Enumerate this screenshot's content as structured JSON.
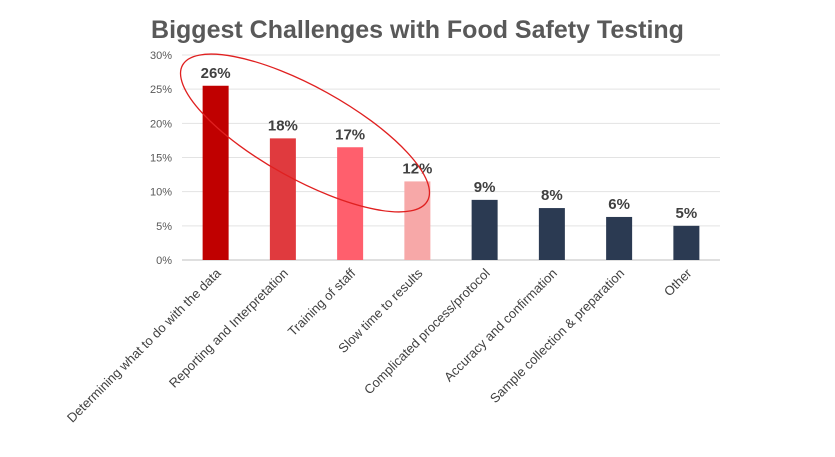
{
  "chart_data": {
    "type": "bar",
    "title": "Biggest Challenges with Food Safety Testing",
    "xlabel": "",
    "ylabel": "",
    "ylim": [
      0,
      30
    ],
    "y_ticks": [
      "0%",
      "5%",
      "10%",
      "15%",
      "20%",
      "25%",
      "30%"
    ],
    "y_tick_values": [
      0,
      5,
      10,
      15,
      20,
      25,
      30
    ],
    "grid": true,
    "legend": "none",
    "categories": [
      "Determining what to do with the data",
      "Reporting and Interpretation",
      "Training of staff",
      "Slow time to results",
      "Complicated process/protocol",
      "Accuracy and confirmation",
      "Sample collection & preparation",
      "Other"
    ],
    "values": [
      25.5,
      17.8,
      16.5,
      11.5,
      8.8,
      7.6,
      6.3,
      5.0
    ],
    "data_labels": [
      "26%",
      "18%",
      "17%",
      "12%",
      "9%",
      "8%",
      "6%",
      "5%"
    ],
    "colors": [
      "#c00000",
      "#e03a3e",
      "#ff5f6d",
      "#f7a8a8",
      "#2b3a52",
      "#2b3a52",
      "#2b3a52",
      "#2b3a52"
    ],
    "annotation": "red ellipse highlighting the first four bars",
    "annotation_color": "#e02020"
  }
}
